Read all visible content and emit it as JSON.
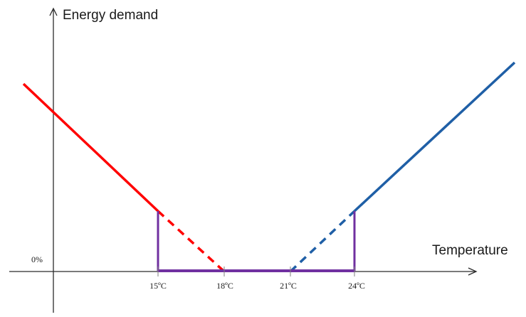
{
  "axes": {
    "y_label": "Energy demand",
    "x_label": "Temperature",
    "y_zero_label": "0%"
  },
  "ticks": [
    {
      "label": "15ºC",
      "value": 15
    },
    {
      "label": "18ºC",
      "value": 18
    },
    {
      "label": "21ºC",
      "value": 21
    },
    {
      "label": "24ºC",
      "value": 24
    }
  ],
  "colors": {
    "heating": "#ff0000",
    "cooling": "#1f5fa6",
    "baseline": "#7030a0",
    "axis": "#2b2b2b"
  }
}
